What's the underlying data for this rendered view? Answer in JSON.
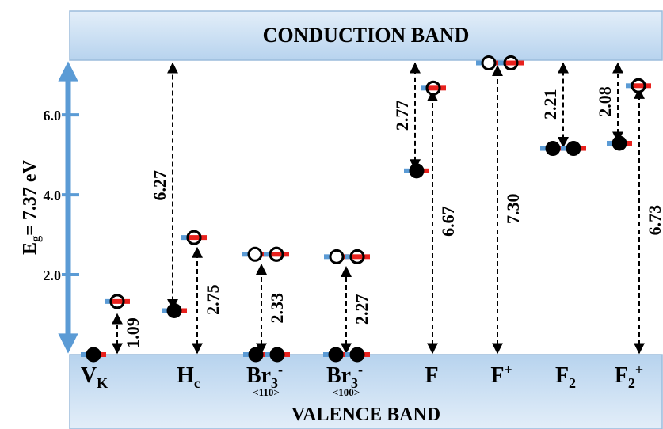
{
  "conduction_band": {
    "label": "CONDUCTION BAND"
  },
  "valence_band": {
    "label": "VALENCE BAND"
  },
  "axis": {
    "label_main": "E",
    "label_sub": "g",
    "label_rest": "= 7.37 eV",
    "ticks": [
      "2.0",
      "4.0",
      "6.0"
    ],
    "tick_values": [
      2.0,
      4.0,
      6.0
    ]
  },
  "defects": [
    {
      "main": "V",
      "sub": "K",
      "sup": "",
      "note": ""
    },
    {
      "main": "H",
      "sub": "c",
      "sup": "",
      "note": ""
    },
    {
      "main": "Br",
      "sub": "3",
      "sup": "-",
      "note": "<110>"
    },
    {
      "main": "Br",
      "sub": "3",
      "sup": "-",
      "note": "<100>"
    },
    {
      "main": "F",
      "sub": "",
      "sup": "",
      "note": ""
    },
    {
      "main": "F",
      "sub": "",
      "sup": "+",
      "note": ""
    },
    {
      "main": "F",
      "sub": "2",
      "sup": "",
      "note": ""
    },
    {
      "main": "F",
      "sub": "2",
      "sup": "+",
      "note": ""
    }
  ],
  "transitions": [
    {
      "label": "1.09",
      "value": 1.09,
      "from": 0,
      "to": 1.09,
      "side": "right"
    },
    {
      "label": "6.27",
      "value": 6.27,
      "from": 1.1,
      "to": 7.37,
      "side": "left"
    },
    {
      "label": "2.75",
      "value": 2.75,
      "from": 0,
      "to": 2.75,
      "side": "right"
    },
    {
      "label": "2.33",
      "value": 2.33,
      "from": 0,
      "to": 2.33,
      "side": "right"
    },
    {
      "label": "2.27",
      "value": 2.27,
      "from": 0,
      "to": 2.27,
      "side": "right"
    },
    {
      "label": "2.77",
      "value": 2.77,
      "from": 4.6,
      "to": 7.37,
      "side": "left"
    },
    {
      "label": "6.67",
      "value": 6.67,
      "from": 0,
      "to": 6.67,
      "side": "right"
    },
    {
      "label": "7.30",
      "value": 7.3,
      "from": 0,
      "to": 7.3,
      "side": "right"
    },
    {
      "label": "2.21",
      "value": 2.21,
      "from": 5.16,
      "to": 7.37,
      "side": "left"
    },
    {
      "label": "2.08",
      "value": 2.08,
      "from": 5.29,
      "to": 7.37,
      "side": "left"
    },
    {
      "label": "6.73",
      "value": 6.73,
      "from": 0,
      "to": 6.73,
      "side": "right"
    }
  ],
  "colors": {
    "band_fill": "#bcd7ef",
    "band_stroke": "#8fb3d6",
    "axis": "#5b9bd5",
    "level_blue": "#5b9bd5",
    "level_red": "#e8211d"
  }
}
